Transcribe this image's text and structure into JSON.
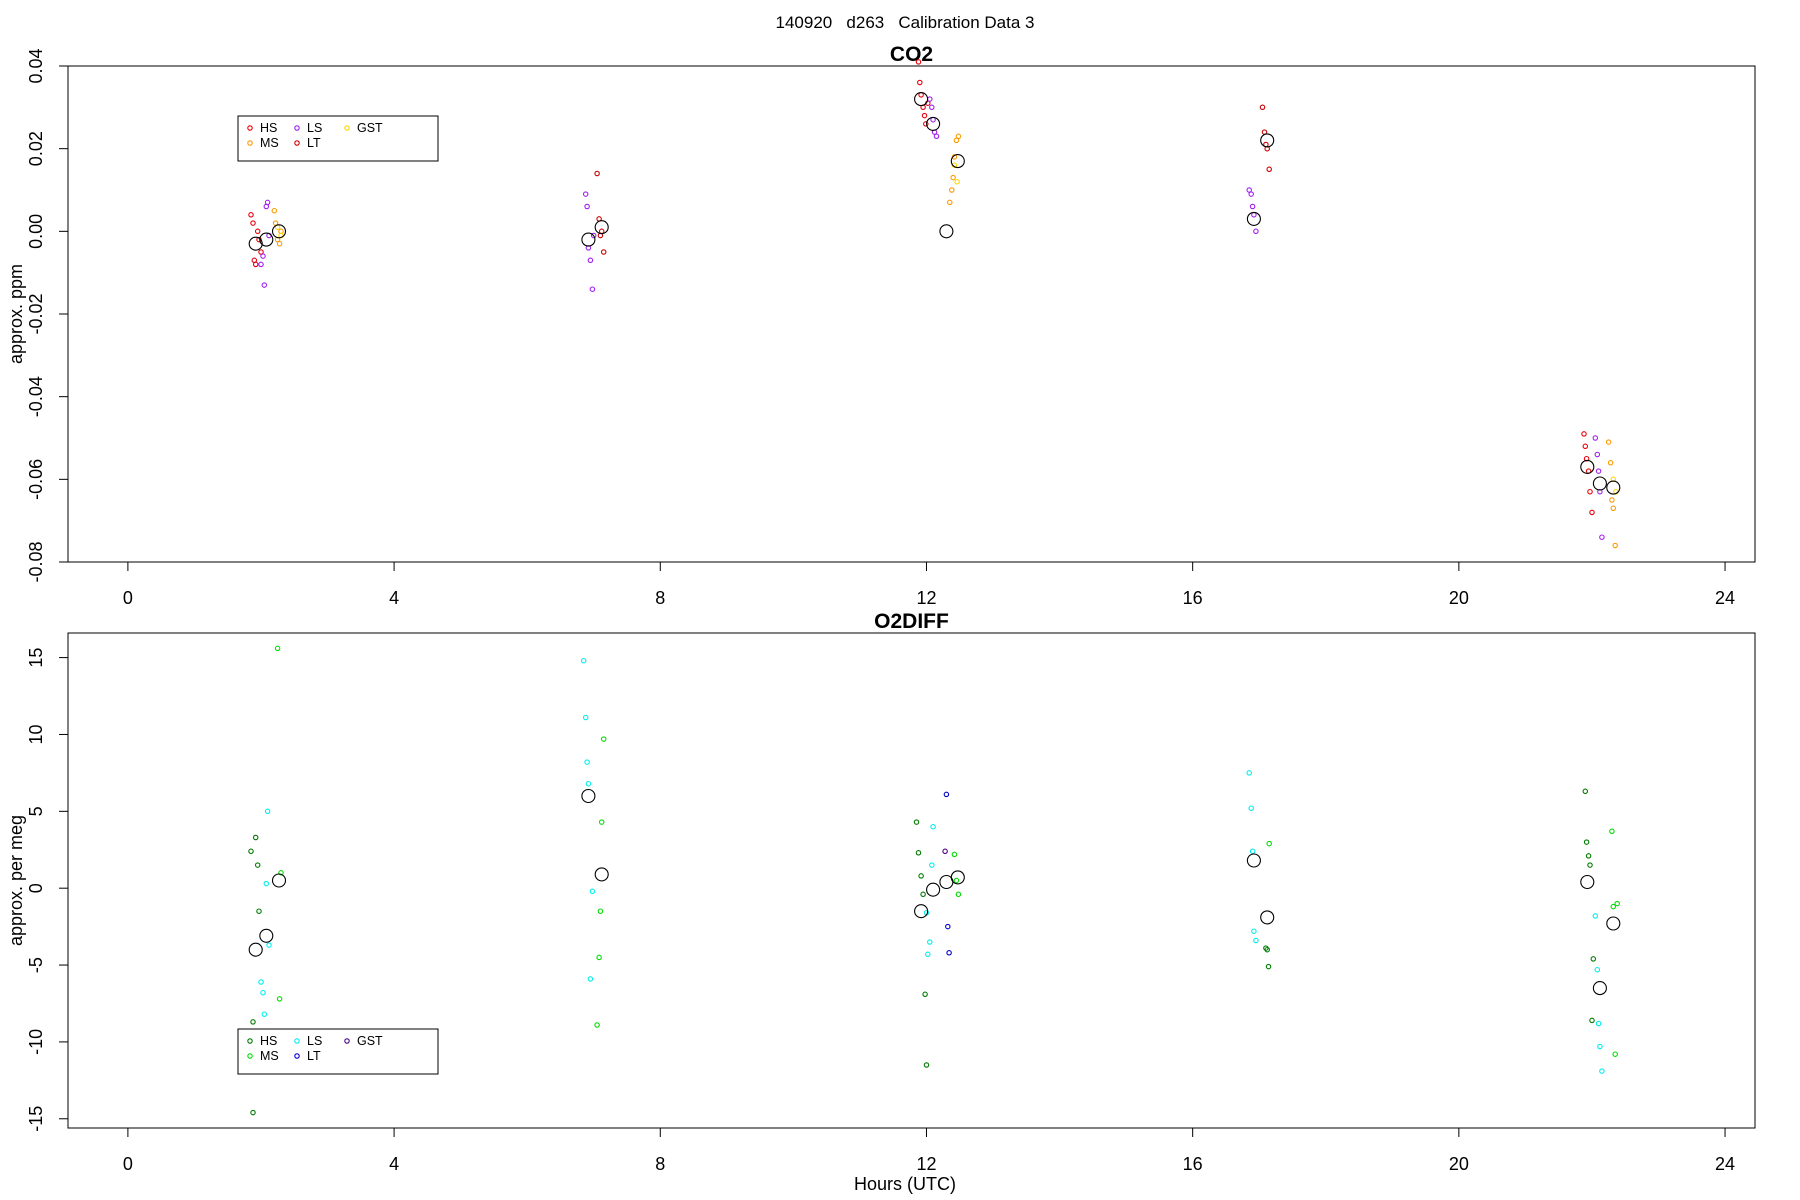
{
  "figure": {
    "title": "140920   d263   Calibration Data 3",
    "xlabel": "Hours (UTC)"
  },
  "chart_data": [
    {
      "type": "scatter",
      "title": "CO2",
      "xlabel": "",
      "ylabel": "approx. ppm",
      "xlim": [
        -0.9,
        24.45
      ],
      "ylim": [
        -0.08,
        0.04
      ],
      "xticks": [
        0,
        4,
        8,
        12,
        16,
        20,
        24
      ],
      "yticks": [
        -0.08,
        -0.06,
        -0.04,
        -0.02,
        0.0,
        0.02,
        0.04
      ],
      "ytick_labels": [
        "-0.08",
        "-0.06",
        "-0.04",
        "-0.02",
        "0.00",
        "0.02",
        "0.04"
      ],
      "grid": false,
      "legend_position": "top-left",
      "legend": [
        {
          "label": "HS",
          "color": "#e8000b"
        },
        {
          "label": "MS",
          "color": "#ff9900"
        },
        {
          "label": "LS",
          "color": "#a020f0"
        },
        {
          "label": "LT",
          "color": "#cc0000"
        },
        {
          "label": "GST",
          "color": "#ffd700"
        }
      ],
      "series": [
        {
          "name": "HS",
          "color": "#e8000b",
          "x": [
            1.85,
            1.88,
            1.9,
            1.92,
            1.95,
            1.97,
            2.0,
            11.88,
            11.9,
            11.92,
            11.95,
            11.97,
            11.99,
            12.02,
            21.88,
            21.9,
            21.92,
            21.95,
            21.97,
            22.0
          ],
          "y": [
            0.004,
            0.002,
            -0.007,
            -0.008,
            0.0,
            -0.002,
            -0.005,
            0.041,
            0.036,
            0.033,
            0.03,
            0.028,
            0.026,
            0.031,
            -0.049,
            -0.052,
            -0.055,
            -0.058,
            -0.063,
            -0.068
          ]
        },
        {
          "name": "MS",
          "color": "#ff9900",
          "x": [
            2.2,
            2.22,
            2.25,
            2.28,
            2.3,
            12.35,
            12.38,
            12.4,
            12.42,
            12.45,
            12.48,
            22.25,
            22.28,
            22.3,
            22.32,
            22.35
          ],
          "y": [
            0.005,
            0.002,
            -0.002,
            -0.003,
            0.0,
            0.007,
            0.01,
            0.013,
            0.018,
            0.022,
            0.023,
            -0.051,
            -0.056,
            -0.065,
            -0.067,
            -0.076
          ]
        },
        {
          "name": "LS",
          "color": "#a020f0",
          "x": [
            2.0,
            2.03,
            2.05,
            2.08,
            2.1,
            2.12,
            6.88,
            6.9,
            6.92,
            6.95,
            6.98,
            7.0,
            12.05,
            12.08,
            12.1,
            12.12,
            12.15,
            16.85,
            16.88,
            16.9,
            16.92,
            16.95,
            22.05,
            22.08,
            22.1,
            22.12,
            22.15
          ],
          "y": [
            -0.008,
            -0.006,
            -0.013,
            0.006,
            0.007,
            -0.001,
            0.009,
            0.006,
            -0.004,
            -0.007,
            -0.014,
            -0.001,
            0.032,
            0.03,
            0.027,
            0.024,
            0.023,
            0.01,
            0.009,
            0.006,
            0.004,
            0.0,
            -0.05,
            -0.054,
            -0.058,
            -0.063,
            -0.074
          ]
        },
        {
          "name": "LT",
          "color": "#cc0000",
          "x": [
            7.05,
            7.08,
            7.1,
            7.12,
            7.15,
            17.05,
            17.08,
            17.1,
            17.12,
            17.15
          ],
          "y": [
            0.014,
            0.003,
            -0.001,
            0.0,
            -0.005,
            0.03,
            0.024,
            0.021,
            0.02,
            0.015
          ]
        },
        {
          "name": "GST",
          "color": "#ffd700",
          "x": [
            2.25,
            2.3,
            12.42,
            12.46,
            22.32,
            22.36
          ],
          "y": [
            0.001,
            -0.001,
            0.016,
            0.012,
            -0.06,
            -0.063
          ]
        }
      ],
      "means": [
        {
          "x": 1.92,
          "y": -0.003
        },
        {
          "x": 2.08,
          "y": -0.002
        },
        {
          "x": 2.27,
          "y": 0.0
        },
        {
          "x": 6.92,
          "y": -0.002
        },
        {
          "x": 7.12,
          "y": 0.001
        },
        {
          "x": 11.92,
          "y": 0.032
        },
        {
          "x": 12.1,
          "y": 0.026
        },
        {
          "x": 12.3,
          "y": 0.0
        },
        {
          "x": 12.47,
          "y": 0.017
        },
        {
          "x": 16.92,
          "y": 0.003
        },
        {
          "x": 17.12,
          "y": 0.022
        },
        {
          "x": 21.93,
          "y": -0.057
        },
        {
          "x": 22.12,
          "y": -0.061
        },
        {
          "x": 22.32,
          "y": -0.062
        }
      ]
    },
    {
      "type": "scatter",
      "title": "O2DIFF",
      "xlabel": "Hours (UTC)",
      "ylabel": "approx. per meg",
      "xlim": [
        -0.9,
        24.45
      ],
      "ylim": [
        -15.6,
        16.6
      ],
      "xticks": [
        0,
        4,
        8,
        12,
        16,
        20,
        24
      ],
      "yticks": [
        -15,
        -10,
        -5,
        0,
        5,
        10,
        15
      ],
      "ytick_labels": [
        "-15",
        "-10",
        "-5",
        "0",
        "5",
        "10",
        "15"
      ],
      "grid": false,
      "legend_position": "bottom-left",
      "legend": [
        {
          "label": "HS",
          "color": "#007a00"
        },
        {
          "label": "MS",
          "color": "#00dd00"
        },
        {
          "label": "LS",
          "color": "#00eeee"
        },
        {
          "label": "LT",
          "color": "#0000cc"
        },
        {
          "label": "GST",
          "color": "#4b0082"
        }
      ],
      "series": [
        {
          "name": "HS",
          "color": "#007a00",
          "x": [
            1.85,
            1.88,
            1.92,
            1.95,
            1.97,
            1.88,
            11.85,
            11.88,
            11.92,
            11.95,
            11.98,
            12.0,
            17.1,
            17.12,
            17.14,
            21.9,
            21.92,
            21.95,
            21.97,
            22.0,
            22.02
          ],
          "y": [
            2.4,
            -8.7,
            3.3,
            1.5,
            -1.5,
            -14.6,
            4.3,
            2.3,
            0.8,
            -0.4,
            -6.9,
            -11.5,
            -3.9,
            -4.0,
            -5.1,
            6.3,
            3.0,
            2.1,
            1.5,
            -8.6,
            -4.6
          ]
        },
        {
          "name": "MS",
          "color": "#00dd00",
          "x": [
            2.25,
            2.28,
            2.3,
            7.05,
            7.08,
            7.1,
            7.12,
            7.15,
            12.42,
            12.45,
            12.48,
            17.15,
            22.3,
            22.32,
            22.35,
            22.38
          ],
          "y": [
            15.6,
            -7.2,
            1.0,
            -8.9,
            -4.5,
            -1.5,
            4.3,
            9.7,
            2.2,
            0.5,
            -0.4,
            2.9,
            3.7,
            -1.2,
            -10.8,
            -1.0
          ]
        },
        {
          "name": "LS",
          "color": "#00eeee",
          "x": [
            2.0,
            2.03,
            2.05,
            2.08,
            2.1,
            2.12,
            6.85,
            6.88,
            6.9,
            6.92,
            6.95,
            6.98,
            12.0,
            12.02,
            12.05,
            12.08,
            12.1,
            16.85,
            16.88,
            16.9,
            16.92,
            16.95,
            22.05,
            22.08,
            22.1,
            22.12,
            22.15
          ],
          "y": [
            -6.1,
            -6.8,
            -8.2,
            0.3,
            5.0,
            -3.7,
            14.8,
            11.1,
            8.2,
            6.8,
            -5.9,
            -0.2,
            -1.6,
            -4.3,
            -3.5,
            1.5,
            4.0,
            7.5,
            5.2,
            2.4,
            -2.8,
            -3.4,
            -1.8,
            -5.3,
            -8.8,
            -10.3,
            -11.9
          ]
        },
        {
          "name": "LT",
          "color": "#0000cc",
          "x": [
            12.3,
            12.32,
            12.34
          ],
          "y": [
            6.1,
            -2.5,
            -4.2
          ]
        },
        {
          "name": "GST",
          "color": "#4b0082",
          "x": [
            12.28
          ],
          "y": [
            2.4
          ]
        }
      ],
      "means": [
        {
          "x": 1.92,
          "y": -4.0
        },
        {
          "x": 2.08,
          "y": -3.1
        },
        {
          "x": 2.27,
          "y": 0.5
        },
        {
          "x": 6.92,
          "y": 6.0
        },
        {
          "x": 7.12,
          "y": 0.9
        },
        {
          "x": 11.92,
          "y": -1.5
        },
        {
          "x": 12.1,
          "y": -0.1
        },
        {
          "x": 12.3,
          "y": 0.4
        },
        {
          "x": 12.47,
          "y": 0.7
        },
        {
          "x": 16.92,
          "y": 1.8
        },
        {
          "x": 17.12,
          "y": -1.9
        },
        {
          "x": 21.93,
          "y": 0.4
        },
        {
          "x": 22.12,
          "y": -6.5
        },
        {
          "x": 22.32,
          "y": -2.3
        }
      ]
    }
  ]
}
